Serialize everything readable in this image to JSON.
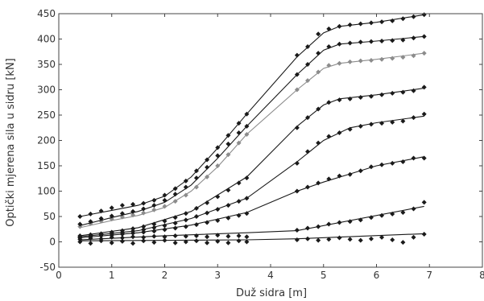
{
  "chart_data": {
    "type": "scatter",
    "xlabel": "Duž sidra [m]",
    "ylabel": "Optički mjerena sila u sidru [kN]",
    "xlim": [
      0,
      8
    ],
    "ylim": [
      -50,
      450
    ],
    "xticks": [
      "0",
      "1",
      "2",
      "3",
      "4",
      "5",
      "6",
      "7",
      "8"
    ],
    "yticks": [
      "-50",
      "0",
      "50",
      "100",
      "150",
      "200",
      "250",
      "300",
      "350",
      "400",
      "450"
    ],
    "grid": false,
    "legend": "none",
    "marker": "diamond",
    "series": [
      {
        "color": "#1a1a1a",
        "markers": [
          [
            0.4,
            0
          ],
          [
            0.6,
            -3
          ],
          [
            0.8,
            2
          ],
          [
            1.0,
            -2
          ],
          [
            1.2,
            1
          ],
          [
            1.4,
            -3
          ],
          [
            1.6,
            2
          ],
          [
            1.8,
            -1
          ],
          [
            2.0,
            3
          ],
          [
            2.2,
            -2
          ],
          [
            2.4,
            0
          ],
          [
            2.6,
            2
          ],
          [
            2.8,
            -2
          ],
          [
            3.0,
            1
          ],
          [
            3.2,
            -2
          ],
          [
            3.4,
            2
          ],
          [
            3.55,
            0
          ],
          [
            4.5,
            4
          ],
          [
            4.7,
            6
          ],
          [
            4.9,
            3
          ],
          [
            5.1,
            5
          ],
          [
            5.3,
            8
          ],
          [
            5.5,
            5
          ],
          [
            5.7,
            3
          ],
          [
            5.9,
            6
          ],
          [
            6.1,
            9
          ],
          [
            6.3,
            4
          ],
          [
            6.5,
            -1
          ],
          [
            6.7,
            9
          ],
          [
            6.9,
            15
          ]
        ],
        "fit": [
          [
            0.4,
            2
          ],
          [
            3.55,
            4
          ],
          [
            4.5,
            6
          ],
          [
            6.9,
            16
          ]
        ]
      },
      {
        "color": "#1a1a1a",
        "markers": [
          [
            0.4,
            5
          ],
          [
            0.6,
            7
          ],
          [
            0.8,
            6
          ],
          [
            1.0,
            9
          ],
          [
            1.2,
            8
          ],
          [
            1.4,
            10
          ],
          [
            1.6,
            9
          ],
          [
            1.8,
            11
          ],
          [
            2.0,
            10
          ],
          [
            2.2,
            12
          ],
          [
            2.4,
            11
          ],
          [
            2.6,
            12
          ],
          [
            2.8,
            10
          ],
          [
            3.0,
            13
          ],
          [
            3.2,
            11
          ],
          [
            3.4,
            12
          ],
          [
            3.55,
            10
          ],
          [
            4.5,
            23
          ],
          [
            4.7,
            27
          ],
          [
            4.9,
            30
          ],
          [
            5.1,
            35
          ],
          [
            5.3,
            38
          ],
          [
            5.5,
            40
          ],
          [
            5.7,
            43
          ],
          [
            5.9,
            48
          ],
          [
            6.1,
            52
          ],
          [
            6.3,
            55
          ],
          [
            6.5,
            58
          ],
          [
            6.7,
            65
          ],
          [
            6.9,
            78
          ]
        ],
        "fit": [
          [
            0.4,
            4
          ],
          [
            2.0,
            12
          ],
          [
            3.55,
            18
          ],
          [
            4.5,
            22
          ],
          [
            6.9,
            70
          ]
        ]
      },
      {
        "color": "#1a1a1a",
        "markers": [
          [
            0.4,
            8
          ],
          [
            0.6,
            10
          ],
          [
            0.8,
            12
          ],
          [
            1.0,
            13
          ],
          [
            1.2,
            15
          ],
          [
            1.4,
            17
          ],
          [
            1.6,
            19
          ],
          [
            1.8,
            21
          ],
          [
            2.0,
            24
          ],
          [
            2.2,
            27
          ],
          [
            2.4,
            30
          ],
          [
            2.6,
            34
          ],
          [
            2.8,
            38
          ],
          [
            3.0,
            42
          ],
          [
            3.2,
            47
          ],
          [
            3.4,
            52
          ],
          [
            3.55,
            56
          ],
          [
            4.5,
            100
          ],
          [
            4.7,
            108
          ],
          [
            4.9,
            116
          ],
          [
            5.1,
            124
          ],
          [
            5.3,
            130
          ],
          [
            5.5,
            133
          ],
          [
            5.7,
            140
          ],
          [
            5.9,
            148
          ],
          [
            6.1,
            152
          ],
          [
            6.3,
            155
          ],
          [
            6.5,
            158
          ],
          [
            6.7,
            165
          ],
          [
            6.9,
            165
          ]
        ],
        "fit": [
          [
            0.4,
            8
          ],
          [
            1.5,
            18
          ],
          [
            2.5,
            33
          ],
          [
            3.55,
            58
          ],
          [
            4.5,
            100
          ],
          [
            5.0,
            118
          ],
          [
            5.5,
            134
          ],
          [
            6.0,
            150
          ],
          [
            6.9,
            168
          ]
        ]
      },
      {
        "color": "#1a1a1a",
        "markers": [
          [
            0.4,
            10
          ],
          [
            0.6,
            12
          ],
          [
            0.8,
            14
          ],
          [
            1.0,
            16
          ],
          [
            1.2,
            18
          ],
          [
            1.4,
            21
          ],
          [
            1.6,
            24
          ],
          [
            1.8,
            28
          ],
          [
            2.0,
            32
          ],
          [
            2.2,
            37
          ],
          [
            2.4,
            43
          ],
          [
            2.6,
            50
          ],
          [
            2.8,
            57
          ],
          [
            3.0,
            64
          ],
          [
            3.2,
            72
          ],
          [
            3.4,
            80
          ],
          [
            3.55,
            86
          ],
          [
            4.5,
            155
          ],
          [
            4.7,
            178
          ],
          [
            4.9,
            195
          ],
          [
            5.1,
            208
          ],
          [
            5.3,
            215
          ],
          [
            5.5,
            222
          ],
          [
            5.7,
            228
          ],
          [
            5.9,
            232
          ],
          [
            6.1,
            234
          ],
          [
            6.3,
            236
          ],
          [
            6.5,
            238
          ],
          [
            6.7,
            245
          ],
          [
            6.9,
            252
          ]
        ],
        "fit": [
          [
            0.4,
            10
          ],
          [
            1.5,
            22
          ],
          [
            2.5,
            46
          ],
          [
            3.55,
            86
          ],
          [
            4.5,
            158
          ],
          [
            5.0,
            200
          ],
          [
            5.5,
            225
          ],
          [
            6.0,
            235
          ],
          [
            6.9,
            248
          ]
        ]
      },
      {
        "color": "#1a1a1a",
        "markers": [
          [
            0.4,
            12
          ],
          [
            0.6,
            14
          ],
          [
            0.8,
            16
          ],
          [
            1.0,
            19
          ],
          [
            1.2,
            22
          ],
          [
            1.4,
            26
          ],
          [
            1.6,
            30
          ],
          [
            1.8,
            35
          ],
          [
            2.0,
            41
          ],
          [
            2.2,
            48
          ],
          [
            2.4,
            56
          ],
          [
            2.6,
            66
          ],
          [
            2.8,
            77
          ],
          [
            3.0,
            89
          ],
          [
            3.2,
            102
          ],
          [
            3.4,
            116
          ],
          [
            3.55,
            126
          ],
          [
            4.5,
            225
          ],
          [
            4.7,
            245
          ],
          [
            4.9,
            262
          ],
          [
            5.1,
            275
          ],
          [
            5.3,
            280
          ],
          [
            5.5,
            282
          ],
          [
            5.7,
            285
          ],
          [
            5.9,
            287
          ],
          [
            6.1,
            290
          ],
          [
            6.3,
            293
          ],
          [
            6.5,
            295
          ],
          [
            6.7,
            298
          ],
          [
            6.9,
            305
          ]
        ],
        "fit": [
          [
            0.4,
            12
          ],
          [
            1.5,
            28
          ],
          [
            2.5,
            60
          ],
          [
            3.55,
            128
          ],
          [
            4.5,
            228
          ],
          [
            5.0,
            270
          ],
          [
            5.3,
            282
          ],
          [
            6.0,
            290
          ],
          [
            6.9,
            303
          ]
        ]
      },
      {
        "color": "#8c8c8c",
        "markers": [
          [
            0.4,
            30
          ],
          [
            0.6,
            36
          ],
          [
            0.8,
            41
          ],
          [
            1.0,
            45
          ],
          [
            1.2,
            49
          ],
          [
            1.4,
            53
          ],
          [
            1.6,
            57
          ],
          [
            1.8,
            63
          ],
          [
            2.0,
            70
          ],
          [
            2.2,
            80
          ],
          [
            2.4,
            92
          ],
          [
            2.6,
            108
          ],
          [
            2.8,
            128
          ],
          [
            3.0,
            150
          ],
          [
            3.2,
            172
          ],
          [
            3.4,
            195
          ],
          [
            3.55,
            212
          ],
          [
            4.5,
            300
          ],
          [
            4.7,
            318
          ],
          [
            4.9,
            335
          ],
          [
            5.1,
            348
          ],
          [
            5.3,
            352
          ],
          [
            5.5,
            355
          ],
          [
            5.7,
            357
          ],
          [
            5.9,
            358
          ],
          [
            6.1,
            360
          ],
          [
            6.3,
            362
          ],
          [
            6.5,
            364
          ],
          [
            6.7,
            367
          ],
          [
            6.9,
            372
          ]
        ],
        "fit": [
          [
            0.4,
            28
          ],
          [
            1.0,
            42
          ],
          [
            1.5,
            52
          ],
          [
            2.0,
            68
          ],
          [
            2.5,
            100
          ],
          [
            3.0,
            148
          ],
          [
            3.55,
            212
          ],
          [
            4.5,
            300
          ],
          [
            5.0,
            342
          ],
          [
            5.3,
            352
          ],
          [
            6.0,
            360
          ],
          [
            6.9,
            372
          ]
        ]
      },
      {
        "color": "#1a1a1a",
        "markers": [
          [
            0.4,
            35
          ],
          [
            0.6,
            40
          ],
          [
            0.8,
            46
          ],
          [
            1.0,
            51
          ],
          [
            1.2,
            56
          ],
          [
            1.4,
            60
          ],
          [
            1.6,
            65
          ],
          [
            1.8,
            72
          ],
          [
            2.0,
            82
          ],
          [
            2.2,
            94
          ],
          [
            2.4,
            108
          ],
          [
            2.6,
            126
          ],
          [
            2.8,
            147
          ],
          [
            3.0,
            170
          ],
          [
            3.2,
            193
          ],
          [
            3.4,
            215
          ],
          [
            3.55,
            228
          ],
          [
            4.5,
            330
          ],
          [
            4.7,
            350
          ],
          [
            4.9,
            372
          ],
          [
            5.1,
            385
          ],
          [
            5.3,
            390
          ],
          [
            5.5,
            392
          ],
          [
            5.7,
            394
          ],
          [
            5.9,
            395
          ],
          [
            6.1,
            396
          ],
          [
            6.3,
            397
          ],
          [
            6.5,
            398
          ],
          [
            6.7,
            402
          ],
          [
            6.9,
            405
          ]
        ],
        "fit": [
          [
            0.4,
            32
          ],
          [
            1.0,
            48
          ],
          [
            1.5,
            60
          ],
          [
            2.0,
            78
          ],
          [
            2.5,
            112
          ],
          [
            3.0,
            165
          ],
          [
            3.55,
            228
          ],
          [
            4.5,
            330
          ],
          [
            5.0,
            378
          ],
          [
            5.3,
            390
          ],
          [
            6.0,
            396
          ],
          [
            6.9,
            405
          ]
        ]
      },
      {
        "color": "#1a1a1a",
        "markers": [
          [
            0.4,
            50
          ],
          [
            0.6,
            55
          ],
          [
            0.8,
            61
          ],
          [
            1.0,
            67
          ],
          [
            1.2,
            72
          ],
          [
            1.4,
            74
          ],
          [
            1.6,
            76
          ],
          [
            1.8,
            82
          ],
          [
            2.0,
            92
          ],
          [
            2.2,
            105
          ],
          [
            2.4,
            120
          ],
          [
            2.6,
            140
          ],
          [
            2.8,
            162
          ],
          [
            3.0,
            186
          ],
          [
            3.2,
            210
          ],
          [
            3.4,
            234
          ],
          [
            3.55,
            252
          ],
          [
            4.5,
            368
          ],
          [
            4.7,
            385
          ],
          [
            4.9,
            410
          ],
          [
            5.1,
            420
          ],
          [
            5.3,
            425
          ],
          [
            5.5,
            428
          ],
          [
            5.7,
            430
          ],
          [
            5.9,
            432
          ],
          [
            6.1,
            434
          ],
          [
            6.3,
            436
          ],
          [
            6.5,
            440
          ],
          [
            6.7,
            444
          ],
          [
            6.9,
            448
          ]
        ],
        "fit": [
          [
            0.4,
            50
          ],
          [
            1.0,
            62
          ],
          [
            1.5,
            72
          ],
          [
            2.0,
            90
          ],
          [
            2.5,
            128
          ],
          [
            3.0,
            185
          ],
          [
            3.55,
            252
          ],
          [
            4.5,
            365
          ],
          [
            5.0,
            412
          ],
          [
            5.3,
            425
          ],
          [
            6.0,
            433
          ],
          [
            6.9,
            448
          ]
        ]
      }
    ]
  }
}
